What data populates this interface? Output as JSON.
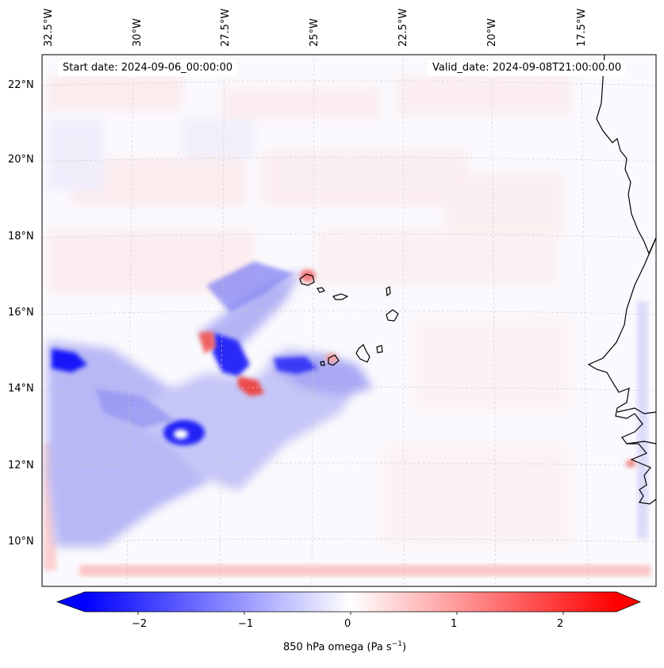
{
  "header": {
    "start_date": "Start date: 2024-09-06_00:00:00",
    "valid_date": "Valid_date: 2024-09-08T21:00:00.00"
  },
  "longitude_labels": [
    "32.5°W",
    "30°W",
    "27.5°W",
    "25°W",
    "22.5°W",
    "20°W",
    "17.5°W"
  ],
  "latitude_labels": [
    "22°N",
    "20°N",
    "18°N",
    "16°N",
    "14°N",
    "12°N",
    "10°N"
  ],
  "colorbar": {
    "label_main": "850 hPa omega (Pa s",
    "label_sup": "−1",
    "label_end": ")",
    "ticks": [
      "−2",
      "−1",
      "0",
      "1",
      "2"
    ],
    "tick_values": [
      -2,
      -1,
      0,
      1,
      2
    ],
    "range": [
      -2.5,
      2.5
    ],
    "extend": "both",
    "colormap": "bwr",
    "colors": {
      "negative": "#0000ff",
      "zero": "#ffffff",
      "positive": "#ff0000"
    }
  },
  "map": {
    "field": "850 hPa omega",
    "grid": true,
    "coastline_color": "#000000",
    "gridline_color": "#c8c8c8"
  }
}
